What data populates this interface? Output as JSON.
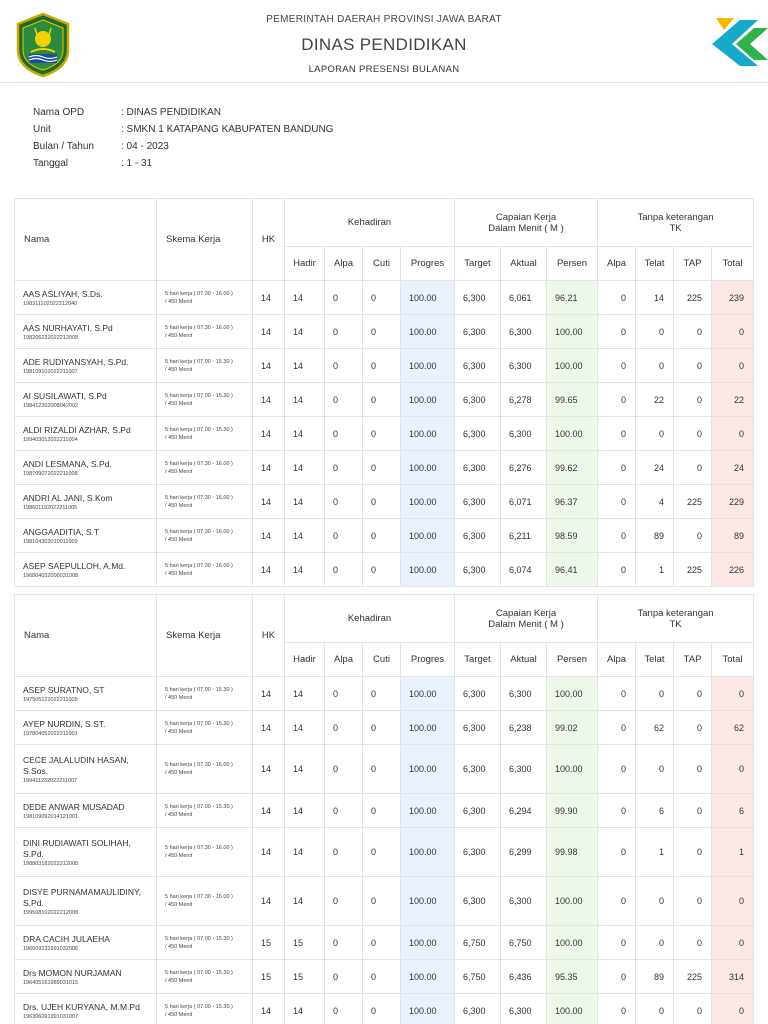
{
  "header": {
    "line1": "PEMERINTAH DAERAH PROVINSI JAWA BARAT",
    "title": "DINAS PENDIDIKAN",
    "subtitle": "LAPORAN PRESENSI BULANAN"
  },
  "colors": {
    "progress_bg": "#eaf3fd",
    "persen_bg": "#eef8ea",
    "total_bg": "#fde8e8",
    "border": "#e3e3e3"
  },
  "info": [
    {
      "label": "Nama OPD",
      "value": ": DINAS PENDIDIKAN"
    },
    {
      "label": "Unit",
      "value": ": SMKN 1 KATAPANG KABUPATEN BANDUNG"
    },
    {
      "label": "Bulan / Tahun",
      "value": ": 04 - 2023"
    },
    {
      "label": "Tanggal",
      "value": ": 1 - 31"
    }
  ],
  "table_headers": {
    "nama": "Nama",
    "skema": "Skema Kerja",
    "hk": "HK",
    "kehadiran": "Kehadiran",
    "capaian_1": "Capaian Kerja",
    "capaian_2": "Dalam Menit ( M )",
    "tanpa_1": "Tanpa keterangan",
    "tanpa_2": "TK",
    "hadir": "Hadir",
    "alpa": "Alpa",
    "cuti": "Cuti",
    "progres": "Progres",
    "target": "Target",
    "aktual": "Aktual",
    "persen": "Persen",
    "tk_alpa": "Alpa",
    "telat": "Telat",
    "tap": "TAP",
    "total": "Total"
  },
  "tables": [
    {
      "rows": [
        {
          "name": "AAS ASLIYAH, S.Ds.",
          "nip": "198311102022212040",
          "skema1": "5 hari kerja ( 07.30 - 16.00 )",
          "skema2": "/ 450 Menit",
          "hk": "14",
          "hadir": "14",
          "alpa": "0",
          "cuti": "0",
          "progres": "100.00",
          "target": "6,300",
          "aktual": "6,061",
          "persen": "96.21",
          "tk_alpa": "0",
          "telat": "14",
          "tap": "225",
          "total": "239"
        },
        {
          "name": "AAS NURHAYATI, S.Pd",
          "nip": "198206232022212008",
          "skema1": "5 hari kerja ( 07.30 - 16.00 )",
          "skema2": "/ 450 Menit",
          "hk": "14",
          "hadir": "14",
          "alpa": "0",
          "cuti": "0",
          "progres": "100.00",
          "target": "6,300",
          "aktual": "6,300",
          "persen": "100.00",
          "tk_alpa": "0",
          "telat": "0",
          "tap": "0",
          "total": "0"
        },
        {
          "name": "ADE RUDIYANSYAH, S.Pd.",
          "nip": "198109102022211007",
          "skema1": "5 hari kerja ( 07.00 - 15.30 )",
          "skema2": "/ 450 Menit",
          "hk": "14",
          "hadir": "14",
          "alpa": "0",
          "cuti": "0",
          "progres": "100.00",
          "target": "6,300",
          "aktual": "6,300",
          "persen": "100.00",
          "tk_alpa": "0",
          "telat": "0",
          "tap": "0",
          "total": "0"
        },
        {
          "name": "AI SUSILAWATI, S.Pd",
          "nip": "198412202008042002",
          "skema1": "5 hari kerja ( 07.00 - 15.30 )",
          "skema2": "/ 450 Menit",
          "hk": "14",
          "hadir": "14",
          "alpa": "0",
          "cuti": "0",
          "progres": "100.00",
          "target": "6,300",
          "aktual": "6,278",
          "persen": "99.65",
          "tk_alpa": "0",
          "telat": "22",
          "tap": "0",
          "total": "22"
        },
        {
          "name": "ALDI RIZALDI AZHAR, S.Pd",
          "nip": "199403012022211004",
          "skema1": "5 hari kerja ( 07.00 - 15.30 )",
          "skema2": "/ 450 Menit",
          "hk": "14",
          "hadir": "14",
          "alpa": "0",
          "cuti": "0",
          "progres": "100.00",
          "target": "6,300",
          "aktual": "6,300",
          "persen": "100.00",
          "tk_alpa": "0",
          "telat": "0",
          "tap": "0",
          "total": "0"
        },
        {
          "name": "ANDI LESMANA, S.Pd.",
          "nip": "198709072022211008",
          "skema1": "5 hari kerja ( 07.30 - 16.00 )",
          "skema2": "/ 450 Menit",
          "hk": "14",
          "hadir": "14",
          "alpa": "0",
          "cuti": "0",
          "progres": "100.00",
          "target": "6,300",
          "aktual": "6,276",
          "persen": "99.62",
          "tk_alpa": "0",
          "telat": "24",
          "tap": "0",
          "total": "24"
        },
        {
          "name": "ANDRI AL JANI, S.Kom",
          "nip": "198601192022211005",
          "skema1": "5 hari kerja ( 07.30 - 16.00 )",
          "skema2": "/ 450 Menit",
          "hk": "14",
          "hadir": "14",
          "alpa": "0",
          "cuti": "0",
          "progres": "100.00",
          "target": "6,300",
          "aktual": "6,071",
          "persen": "96.37",
          "tk_alpa": "0",
          "telat": "4",
          "tap": "225",
          "total": "229"
        },
        {
          "name": "ANGGAADITIA, S.T",
          "nip": "198104302010011009",
          "skema1": "5 hari kerja ( 07.30 - 16.00 )",
          "skema2": "/ 450 Menit",
          "hk": "14",
          "hadir": "14",
          "alpa": "0",
          "cuti": "0",
          "progres": "100.00",
          "target": "6,300",
          "aktual": "6,211",
          "persen": "98.59",
          "tk_alpa": "0",
          "telat": "89",
          "tap": "0",
          "total": "89"
        },
        {
          "name": "ASEP SAEPULLOH, A.Md.",
          "nip": "196804032000031008",
          "skema1": "5 hari kerja ( 07.30 - 16.00 )",
          "skema2": "/ 450 Menit",
          "hk": "14",
          "hadir": "14",
          "alpa": "0",
          "cuti": "0",
          "progres": "100.00",
          "target": "6,300",
          "aktual": "6,074",
          "persen": "96.41",
          "tk_alpa": "0",
          "telat": "1",
          "tap": "225",
          "total": "226"
        }
      ]
    },
    {
      "rows": [
        {
          "name": "ASEP SURATNO, ST",
          "nip": "197505122022211005",
          "skema1": "5 hari kerja ( 07.00 - 15.30 )",
          "skema2": "/ 450 Menit",
          "hk": "14",
          "hadir": "14",
          "alpa": "0",
          "cuti": "0",
          "progres": "100.00",
          "target": "6,300",
          "aktual": "6,300",
          "persen": "100.00",
          "tk_alpa": "0",
          "telat": "0",
          "tap": "0",
          "total": "0"
        },
        {
          "name": "AYEP NURDIN, S.ST.",
          "nip": "197804052022211001",
          "skema1": "5 hari kerja ( 07.00 - 15.30 )",
          "skema2": "/ 450 Menit",
          "hk": "14",
          "hadir": "14",
          "alpa": "0",
          "cuti": "0",
          "progres": "100.00",
          "target": "6,300",
          "aktual": "6,238",
          "persen": "99.02",
          "tk_alpa": "0",
          "telat": "62",
          "tap": "0",
          "total": "62"
        },
        {
          "name": "CECE JALALUDIN HASAN, S.Sos.",
          "nip": "199411232022211007",
          "skema1": "5 hari kerja ( 07.30 - 16.00 )",
          "skema2": "/ 450 Menit",
          "hk": "14",
          "hadir": "14",
          "alpa": "0",
          "cuti": "0",
          "progres": "100.00",
          "target": "6,300",
          "aktual": "6,300",
          "persen": "100.00",
          "tk_alpa": "0",
          "telat": "0",
          "tap": "0",
          "total": "0"
        },
        {
          "name": "DEDE ANWAR MUSADAD",
          "nip": "198109092014121001",
          "skema1": "5 hari kerja ( 07.00 - 15.30 )",
          "skema2": "/ 450 Menit",
          "hk": "14",
          "hadir": "14",
          "alpa": "0",
          "cuti": "0",
          "progres": "100.00",
          "target": "6,300",
          "aktual": "6,294",
          "persen": "99.90",
          "tk_alpa": "0",
          "telat": "6",
          "tap": "0",
          "total": "6"
        },
        {
          "name": "DINI RUDIAWATI SOLIHAH, S.Pd.",
          "nip": "198803182022212008",
          "skema1": "5 hari kerja ( 07.30 - 16.00 )",
          "skema2": "/ 450 Menit",
          "hk": "14",
          "hadir": "14",
          "alpa": "0",
          "cuti": "0",
          "progres": "100.00",
          "target": "6,300",
          "aktual": "6,299",
          "persen": "99.98",
          "tk_alpa": "0",
          "telat": "1",
          "tap": "0",
          "total": "1"
        },
        {
          "name": "DISYE PURNAMAMAULIDINY, S.Pd.",
          "nip": "199508102022212008",
          "skema1": "5 hari kerja ( 07.30 - 16.00 )",
          "skema2": "/ 450 Menit",
          "hk": "14",
          "hadir": "14",
          "alpa": "0",
          "cuti": "0",
          "progres": "100.00",
          "target": "6,300",
          "aktual": "6,300",
          "persen": "100.00",
          "tk_alpa": "0",
          "telat": "0",
          "tap": "0",
          "total": "0"
        },
        {
          "name": "DRA CACIH JULAEHA",
          "nip": "196609231991032006",
          "skema1": "5 hari kerja ( 07.00 - 15.30 )",
          "skema2": "/ 450 Menit",
          "hk": "15",
          "hadir": "15",
          "alpa": "0",
          "cuti": "0",
          "progres": "100.00",
          "target": "6,750",
          "aktual": "6,750",
          "persen": "100.00",
          "tk_alpa": "0",
          "telat": "0",
          "tap": "0",
          "total": "0"
        },
        {
          "name": "Drs MOMON NURJAMAN",
          "nip": "196405161989031015",
          "skema1": "5 hari kerja ( 07.00 - 15.30 )",
          "skema2": "/ 450 Menit",
          "hk": "15",
          "hadir": "15",
          "alpa": "0",
          "cuti": "0",
          "progres": "100.00",
          "target": "6,750",
          "aktual": "6,436",
          "persen": "95.35",
          "tk_alpa": "0",
          "telat": "89",
          "tap": "225",
          "total": "314"
        },
        {
          "name": "Drs. UJEH KURYANA, M.M.Pd",
          "nip": "196306091991031007",
          "skema1": "5 hari kerja ( 07.00 - 15.30 )",
          "skema2": "/ 450 Menit",
          "hk": "14",
          "hadir": "14",
          "alpa": "0",
          "cuti": "0",
          "progres": "100.00",
          "target": "6,300",
          "aktual": "6,300",
          "persen": "100.00",
          "tk_alpa": "0",
          "telat": "0",
          "tap": "0",
          "total": "0"
        }
      ]
    }
  ]
}
